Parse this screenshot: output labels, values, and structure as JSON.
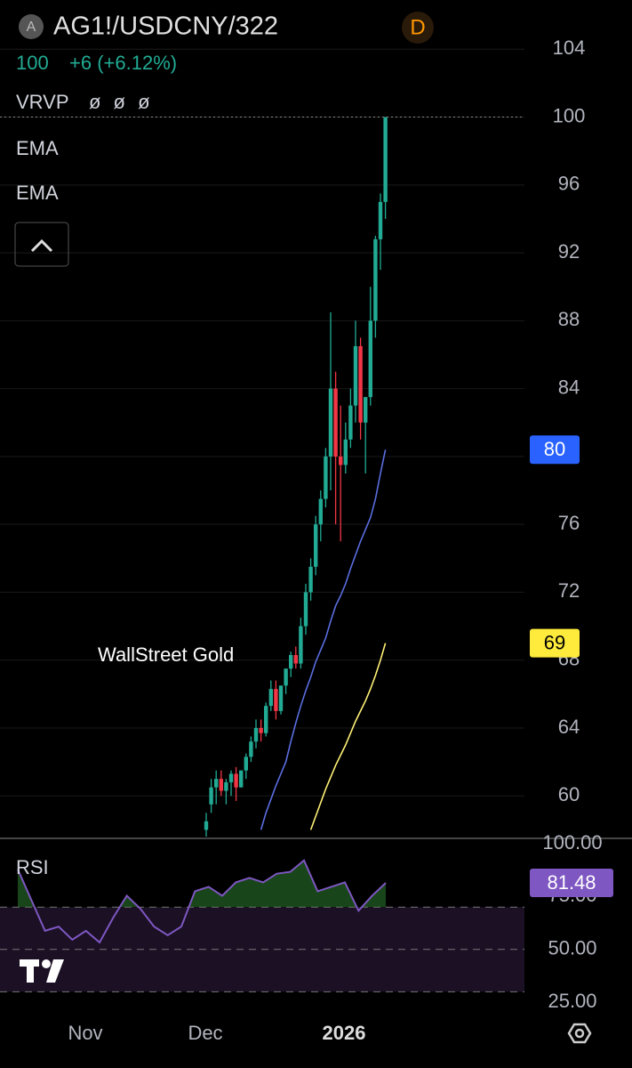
{
  "header": {
    "icon": "A",
    "symbol": "AG1!/USDCNY/322",
    "interval": "D",
    "price": "100",
    "change": "+6 (+6.12%)",
    "vrvp": "VRVP",
    "vrvp_params": "ø ø ø"
  },
  "chart_data": [
    {
      "type": "candlestick",
      "annotation": "WallStreet Gold",
      "up_color": "#22ab94",
      "down_color": "#f23645",
      "open": [
        58,
        59.5,
        60.5,
        61,
        60.3,
        60.8,
        61.3,
        60.5,
        61.5,
        62.3,
        63.2,
        64,
        63.7,
        65.3,
        66.3,
        65,
        66.5,
        67.5,
        68.3,
        67.8,
        70,
        72,
        73.5,
        76,
        77.5,
        80,
        84,
        80,
        79.5,
        81,
        83,
        86.5,
        82,
        83.5,
        88,
        92.8,
        95
      ],
      "high": [
        59,
        61,
        61.5,
        61.5,
        61,
        61.5,
        61.7,
        61.5,
        62.5,
        63.5,
        64.5,
        64.5,
        65.5,
        66.8,
        66.8,
        66.5,
        67.5,
        68.5,
        68.8,
        70.5,
        72.5,
        74,
        76.5,
        78,
        80.5,
        88.5,
        85,
        83,
        82,
        84,
        88,
        87,
        83.5,
        90,
        93,
        95.5,
        100
      ],
      "low": [
        57,
        59,
        59.5,
        60,
        59.5,
        60,
        59.7,
        60.5,
        61,
        62,
        62.8,
        63.2,
        63.5,
        65,
        64.5,
        64.8,
        66,
        67,
        67.5,
        67.5,
        69.5,
        71.5,
        73,
        75,
        77,
        78,
        76,
        75,
        79,
        80.5,
        82,
        81,
        79,
        83,
        87,
        91,
        94
      ],
      "close": [
        58.5,
        60.5,
        61,
        60.3,
        60.8,
        61.3,
        60.5,
        61.5,
        62.3,
        63.2,
        64,
        63.7,
        65.3,
        66.3,
        65,
        66.5,
        67.5,
        68.3,
        67.8,
        70,
        72,
        73.5,
        76,
        77.5,
        80,
        84,
        80,
        79.5,
        81,
        83,
        86.5,
        82,
        83.5,
        88,
        92.8,
        95,
        100
      ],
      "series": [
        {
          "name": "EMA",
          "color": "#5b6ee1",
          "last_label": "80",
          "values": [
            null,
            null,
            null,
            null,
            null,
            null,
            null,
            null,
            null,
            null,
            null,
            58.0,
            59.0,
            59.8,
            60.6,
            61.3,
            62.0,
            63.2,
            64.3,
            65.3,
            66.2,
            67.0,
            67.9,
            68.6,
            69.3,
            70.3,
            71.2,
            71.8,
            72.5,
            73.4,
            74.2,
            75.0,
            75.7,
            76.4,
            77.5,
            79.0,
            80.4
          ]
        },
        {
          "name": "EMA",
          "color": "#fff176",
          "last_label": "69",
          "values": [
            null,
            null,
            null,
            null,
            null,
            null,
            null,
            null,
            null,
            null,
            null,
            null,
            null,
            null,
            null,
            null,
            null,
            null,
            null,
            null,
            null,
            58.0,
            58.8,
            59.6,
            60.4,
            61.1,
            61.8,
            62.4,
            63.0,
            63.7,
            64.4,
            65.0,
            65.6,
            66.3,
            67.1,
            68.0,
            69.0
          ]
        }
      ],
      "ylim": [
        57.6,
        106.9
      ],
      "yticks": [
        60,
        64,
        68,
        72,
        76,
        80,
        84,
        88,
        92,
        96,
        100,
        104
      ],
      "xtick_labels": [
        "Nov",
        "Dec",
        "2026"
      ]
    },
    {
      "type": "line",
      "series": [
        {
          "name": "RSI",
          "color": "#7e57c2",
          "last_label": "81.48",
          "values": [
            87.9,
            73.3,
            58.8,
            60.8,
            54.6,
            58.8,
            53.3,
            65,
            75.4,
            69.2,
            60.8,
            56.7,
            60.8,
            77.5,
            79.6,
            75.4,
            81.7,
            83.8,
            81.7,
            85.8,
            86.7,
            92.1,
            77.5,
            79.6,
            81.7,
            68.3,
            75.4,
            81.48
          ]
        }
      ],
      "ylim": [
        19.2,
        102.5
      ],
      "yticks": [
        {
          "value": 100,
          "label": "100.00"
        },
        {
          "value": 75,
          "label": "75.00"
        },
        {
          "value": 50,
          "label": "50.00"
        },
        {
          "value": 25,
          "label": "25.00"
        }
      ],
      "levels": [
        70,
        50,
        30
      ]
    }
  ]
}
